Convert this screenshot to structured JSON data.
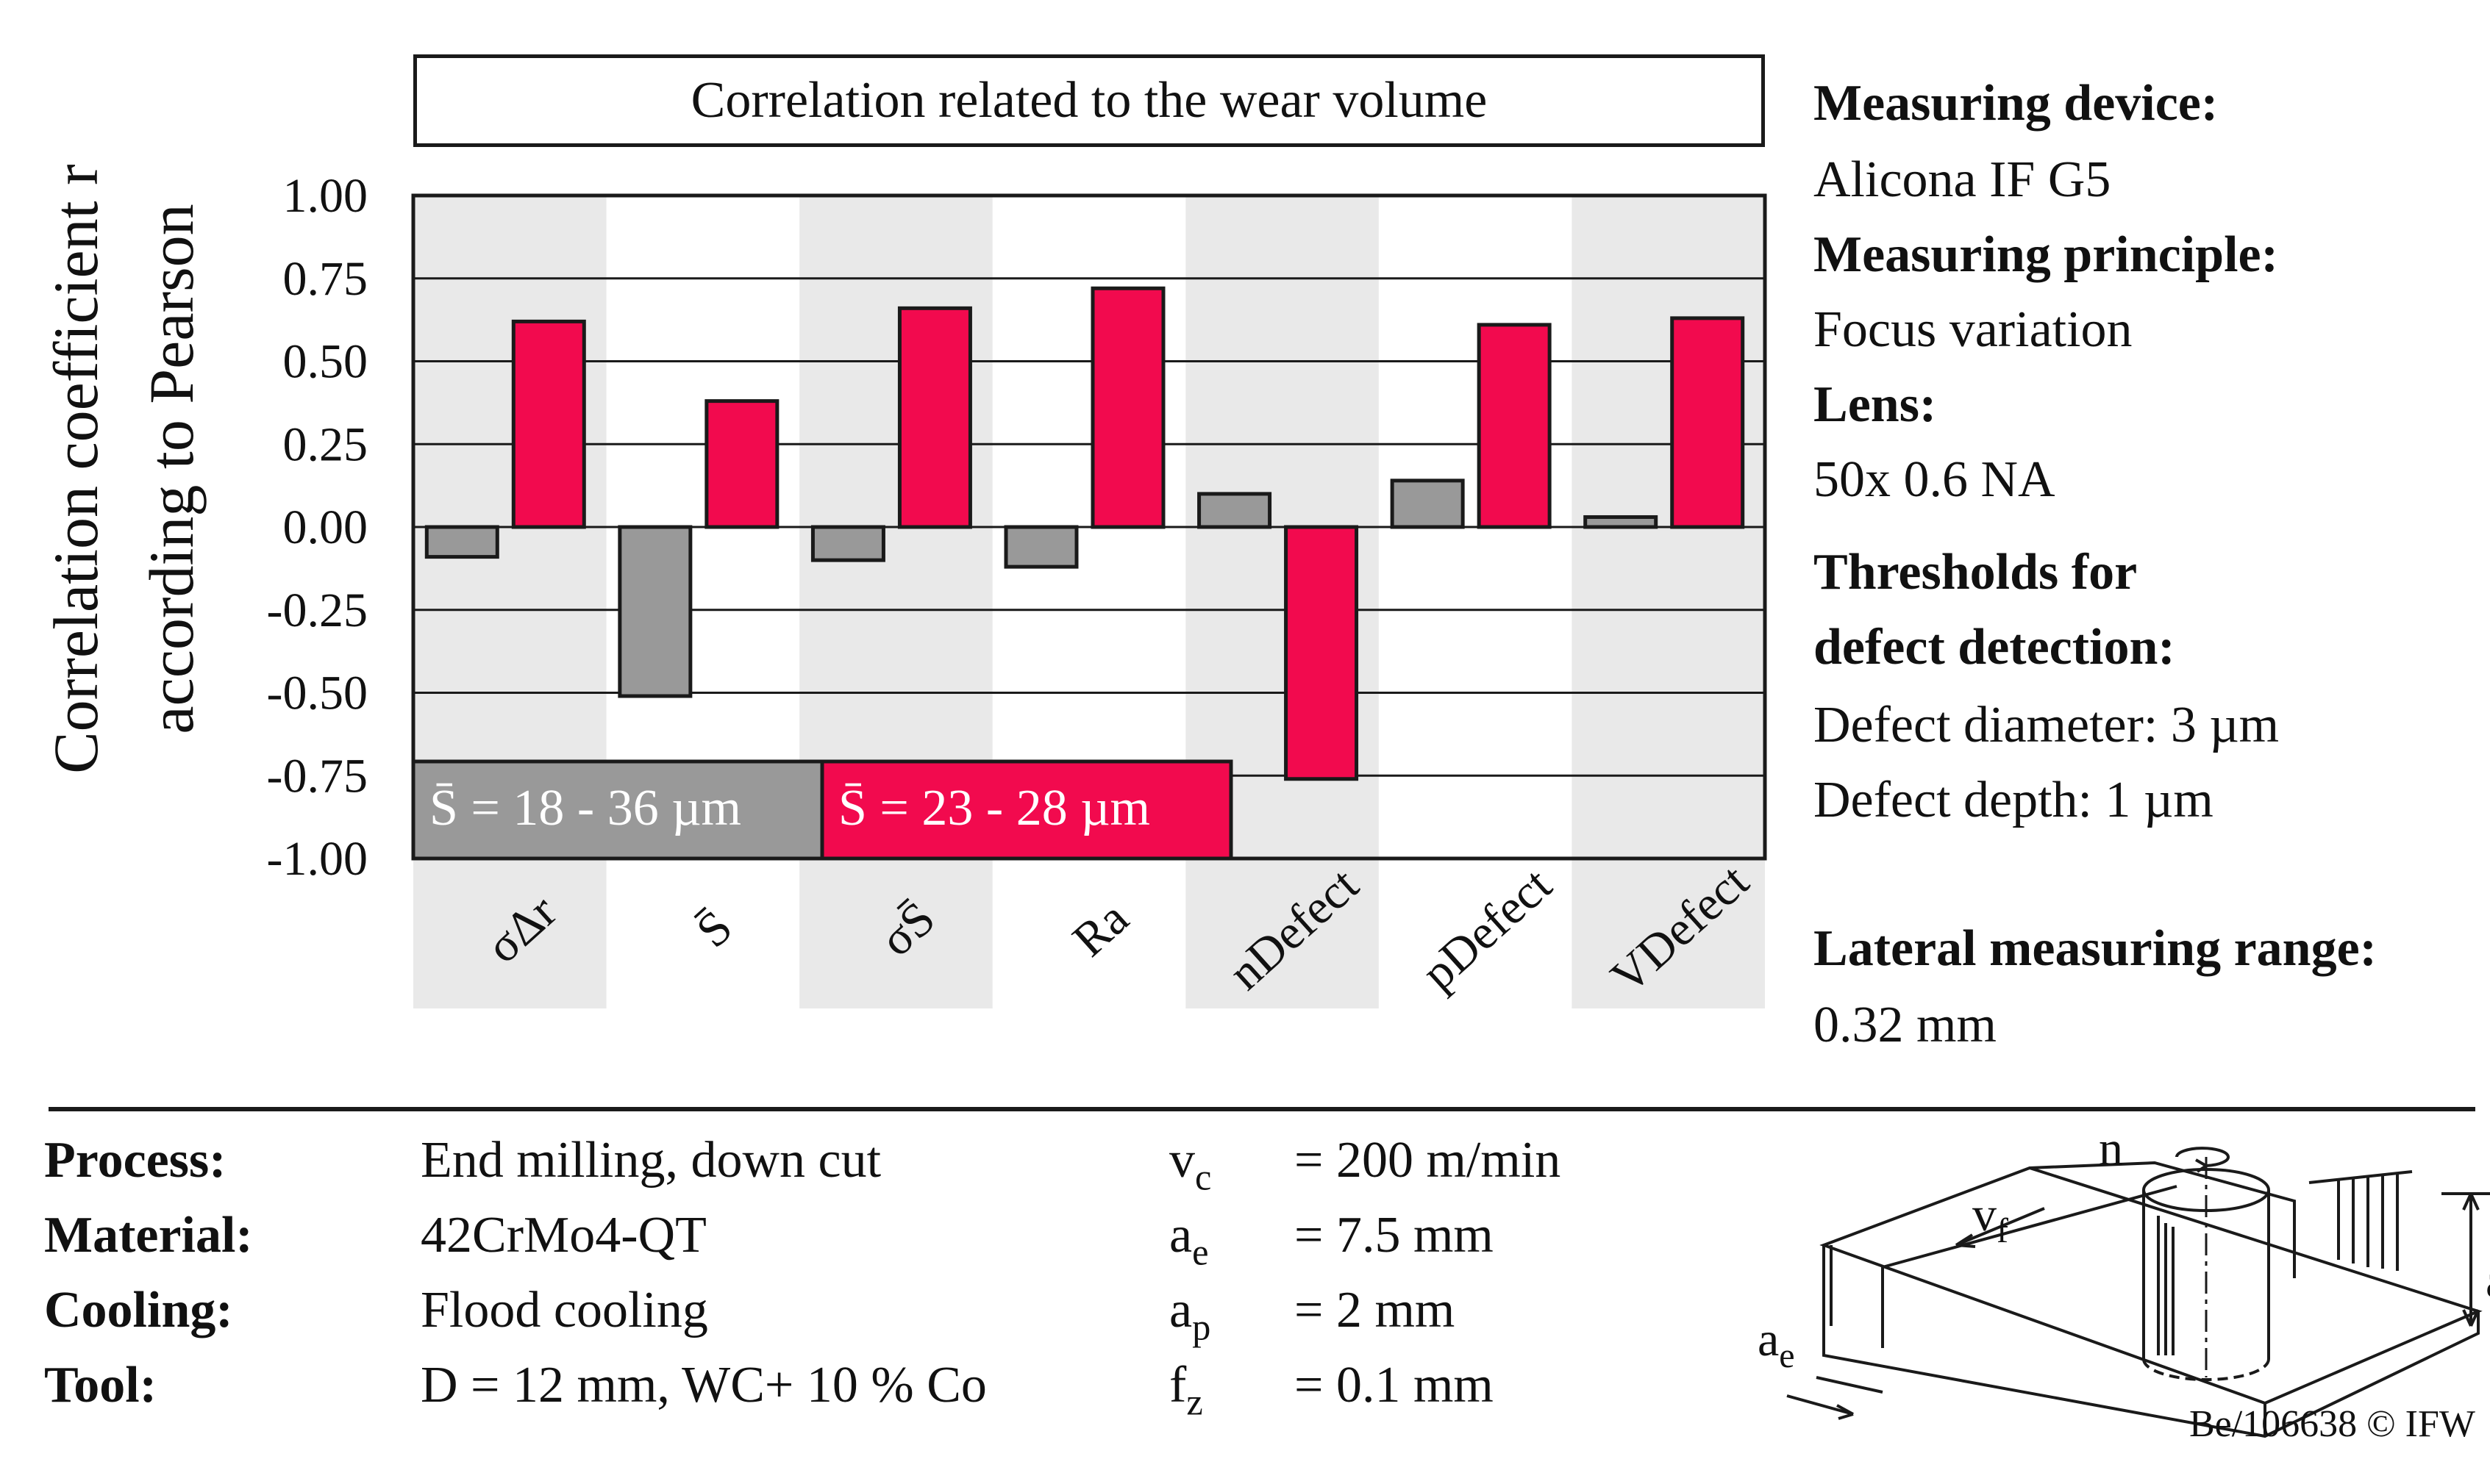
{
  "chart_data": {
    "type": "bar",
    "title": "Correlation related to the wear volume",
    "ylabel": "Correlation coefficient r according to Pearson",
    "xlabel": "",
    "ylim": [
      -1.0,
      1.0
    ],
    "yticks": [
      "1.00",
      "0.75",
      "0.50",
      "0.25",
      "0.00",
      "-0.25",
      "-0.50",
      "-0.75",
      "-1.00"
    ],
    "categories": [
      "σΔr",
      "S̄",
      "σS̄",
      "Ra",
      "nDefect",
      "pDefect",
      "VDefect"
    ],
    "series": [
      {
        "name": "S̄ = 18 - 36 µm",
        "color": "#999999",
        "values": [
          -0.09,
          -0.51,
          -0.1,
          -0.12,
          0.1,
          0.14,
          0.03
        ]
      },
      {
        "name": "S̄ = 23 - 28 µm",
        "color": "#f20a4e",
        "values": [
          0.62,
          0.38,
          0.66,
          0.72,
          -0.76,
          0.61,
          0.63
        ]
      }
    ],
    "grid": true,
    "legend": "bottom-left"
  },
  "specs": {
    "device_label": "Measuring device:",
    "device_value": "Alicona IF G5",
    "principle_label": "Measuring principle:",
    "principle_value": "Focus variation",
    "lens_label": "Lens:",
    "lens_value": "50x 0.6 NA",
    "thresholds_label_1": "Thresholds for",
    "thresholds_label_2": "defect detection:",
    "defect_diameter": "Defect diameter: 3 µm",
    "defect_depth": "Defect depth: 1 µm",
    "range_label": "Lateral measuring range:",
    "range_value": "0.32 mm"
  },
  "process": {
    "rows": [
      {
        "label": "Process:",
        "value": "End milling, down cut",
        "sym": "v",
        "sub": "c",
        "param": "= 200 m/min"
      },
      {
        "label": "Material:",
        "value": "42CrMo4-QT",
        "sym": "a",
        "sub": "e",
        "param": "= 7.5 mm"
      },
      {
        "label": "Cooling:",
        "value": "Flood cooling",
        "sym": "a",
        "sub": "p",
        "param": "= 2 mm"
      },
      {
        "label": "Tool:",
        "value": "D = 12 mm, WC+ 10 % Co",
        "sym": "f",
        "sub": "z",
        "param": "= 0.1 mm"
      }
    ]
  },
  "sketch": {
    "n": "n",
    "vf": "v",
    "vf_sub": "f",
    "ap": "a",
    "ap_sub": "p",
    "ae": "a",
    "ae_sub": "e"
  },
  "copyright": "Be/106638 © IFW"
}
